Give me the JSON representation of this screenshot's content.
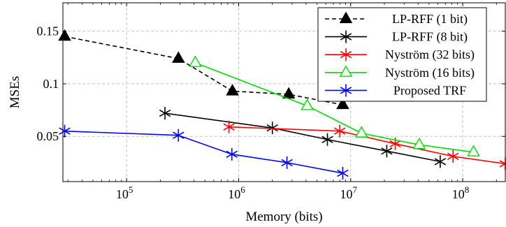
{
  "chart_data": {
    "type": "line",
    "title": "",
    "xlabel": "Memory (bits)",
    "ylabel": "MSEs",
    "xscale": "log",
    "xlim": [
      27000,
      240000000
    ],
    "ylim": [
      0.007,
      0.177
    ],
    "grid": true,
    "legend_position": "top-right",
    "xticks": [
      100000,
      1000000,
      10000000,
      100000000
    ],
    "xtick_labels": [
      {
        "base": "10",
        "exp": "5"
      },
      {
        "base": "10",
        "exp": "6"
      },
      {
        "base": "10",
        "exp": "7"
      },
      {
        "base": "10",
        "exp": "8"
      }
    ],
    "yticks": [
      0.05,
      0.1,
      0.15
    ],
    "ytick_labels": [
      "0.05",
      "0.1",
      "0.15"
    ],
    "series": [
      {
        "name": "LP-RFF (1 bit)",
        "color": "#000000",
        "marker": "filled-triangle",
        "dash": "dashed",
        "x": [
          28000,
          290000,
          880000,
          2800000,
          8500000
        ],
        "y": [
          0.145,
          0.124,
          0.093,
          0.09,
          0.08
        ]
      },
      {
        "name": "LP-RFF (8 bit)",
        "color": "#000000",
        "marker": "star",
        "dash": "solid",
        "x": [
          220000,
          2000000,
          6200000,
          21000000,
          63000000
        ],
        "y": [
          0.072,
          0.058,
          0.047,
          0.036,
          0.026
        ]
      },
      {
        "name": "Nyström (32 bits)",
        "color": "#ff0000",
        "marker": "star",
        "dash": "solid",
        "x": [
          820000,
          8000000,
          25000000,
          82000000,
          240000000
        ],
        "y": [
          0.059,
          0.055,
          0.043,
          0.031,
          0.024
        ]
      },
      {
        "name": "Nyström (16 bits)",
        "color": "#00dd00",
        "marker": "open-triangle",
        "dash": "solid",
        "x": [
          410000,
          4100000,
          12500000,
          41000000,
          125000000
        ],
        "y": [
          0.12,
          0.079,
          0.053,
          0.042,
          0.035
        ]
      },
      {
        "name": "Proposed TRF",
        "color": "#0000ff",
        "marker": "star",
        "dash": "solid",
        "x": [
          28000,
          290000,
          870000,
          2700000,
          8500000
        ],
        "y": [
          0.055,
          0.051,
          0.033,
          0.025,
          0.015
        ]
      }
    ]
  }
}
